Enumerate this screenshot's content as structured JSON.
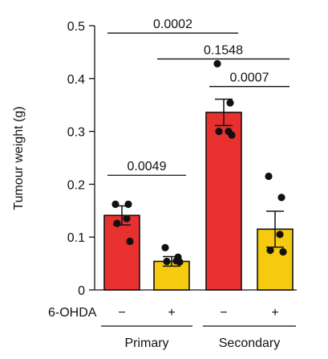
{
  "chart_data": {
    "type": "bar",
    "ylabel": "Tumour weight (g)",
    "ylim": [
      0,
      0.5
    ],
    "yticks": [
      {
        "value": 0,
        "label": "0"
      },
      {
        "value": 0.1,
        "label": "0.1"
      },
      {
        "value": 0.2,
        "label": "0.2"
      },
      {
        "value": 0.3,
        "label": "0.3"
      },
      {
        "value": 0.4,
        "label": "0.4"
      },
      {
        "value": 0.5,
        "label": "0.5"
      }
    ],
    "treatment_label": "6-OHDA",
    "bars": [
      {
        "id": "primary-minus",
        "group": "Primary",
        "treatment": "−",
        "value": 0.141,
        "error": 0.018,
        "color": "#e8312f",
        "points": [
          0.162,
          0.162,
          0.135,
          0.126,
          0.092
        ]
      },
      {
        "id": "primary-plus",
        "group": "Primary",
        "treatment": "+",
        "value": 0.054,
        "error": 0.009,
        "color": "#f6cb0f",
        "points": [
          0.08,
          0.062,
          0.055,
          0.054,
          0.053
        ]
      },
      {
        "id": "secondary-minus",
        "group": "Secondary",
        "treatment": "−",
        "value": 0.336,
        "error": 0.025,
        "color": "#e8312f",
        "points": [
          0.428,
          0.354,
          0.3,
          0.3,
          0.293
        ]
      },
      {
        "id": "secondary-plus",
        "group": "Secondary",
        "treatment": "+",
        "value": 0.115,
        "error": 0.034,
        "color": "#f6cb0f",
        "points": [
          0.215,
          0.175,
          0.105,
          0.075,
          0.072
        ]
      }
    ],
    "groups": [
      {
        "name": "Primary",
        "bars": [
          "primary-minus",
          "primary-plus"
        ]
      },
      {
        "name": "Secondary",
        "bars": [
          "secondary-minus",
          "secondary-plus"
        ]
      }
    ],
    "significance": [
      {
        "from": "primary-minus",
        "to": "primary-plus",
        "label": "0.0049",
        "y": 0.217
      },
      {
        "from": "primary-minus",
        "to": "secondary-minus",
        "label": "0.0002",
        "y": 0.486
      },
      {
        "from": "primary-plus",
        "to": "secondary-plus",
        "label": "0.1548",
        "y": 0.437
      },
      {
        "from": "secondary-minus",
        "to": "secondary-plus",
        "label": "0.0007",
        "y": 0.385
      }
    ]
  }
}
